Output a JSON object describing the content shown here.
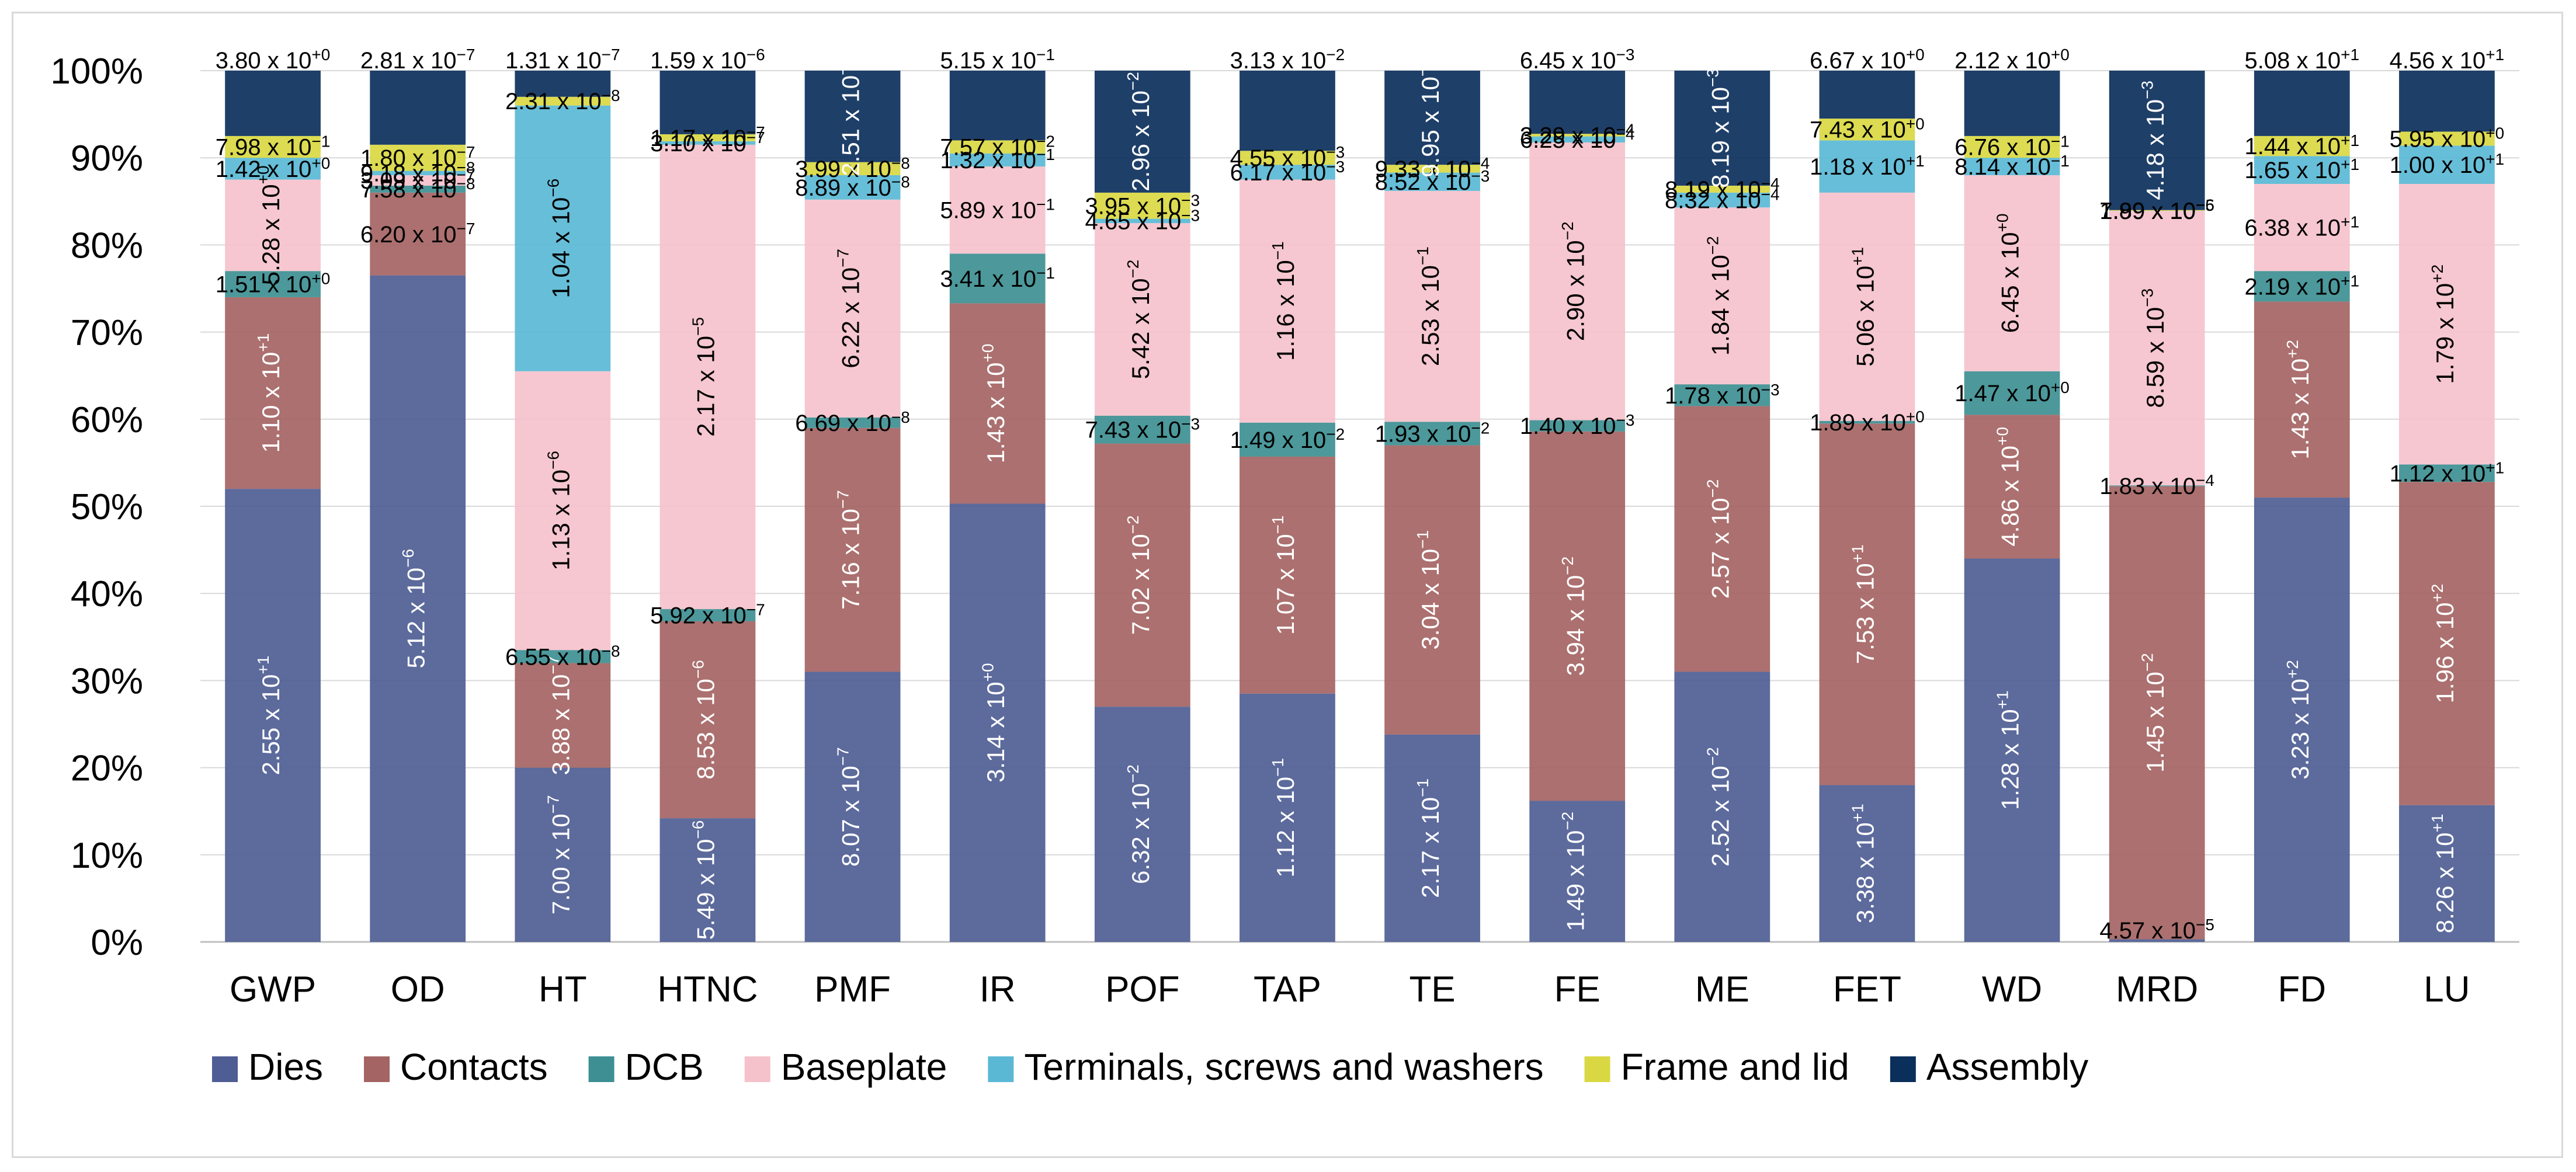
{
  "chart_data": {
    "type": "bar",
    "stacked": "percent",
    "title": "",
    "xlabel": "",
    "ylabel": "",
    "ylim": [
      0,
      100
    ],
    "yticks": [
      "0%",
      "10%",
      "20%",
      "30%",
      "40%",
      "50%",
      "60%",
      "70%",
      "80%",
      "90%",
      "100%"
    ],
    "grid": true,
    "legend_position": "bottom",
    "categories": [
      "GWP",
      "OD",
      "HT",
      "HTNC",
      "PMF",
      "IR",
      "POF",
      "TAP",
      "TE",
      "FE",
      "ME",
      "FET",
      "WD",
      "MRD",
      "FD",
      "LU"
    ],
    "series": [
      {
        "name": "Dies",
        "color": "#4e5d94",
        "values": [
          52,
          76.5,
          20,
          14.2,
          31,
          50.3,
          27,
          28.5,
          23.8,
          16.3,
          31,
          18,
          44,
          0.3,
          51,
          15.7
        ],
        "labels": [
          "2.55 x 10+1",
          "5.12 x 10−6",
          "7.00 x 10−7",
          "5.49 x 10−6",
          "8.07 x 10−7",
          "3.14 x 10+0",
          "6.32 x 10−2",
          "1.12 x 10−1",
          "2.17 x 10−1",
          "1.49 x 10−2",
          "2.52 x 10−2",
          "3.38 x 10+1",
          "1.28 x 10+1",
          "4.57 x 10−5",
          "3.23 x 10+2",
          "8.26 x 10+1"
        ]
      },
      {
        "name": "Contacts",
        "color": "#a46463",
        "values": [
          22,
          9.5,
          12,
          22.6,
          28,
          23,
          30.2,
          27.2,
          33.2,
          42.7,
          30.5,
          41.5,
          16.5,
          52,
          22.5,
          37.1
        ],
        "labels": [
          "1.10 x 10+1",
          "6.20 x 10−7",
          "3.88 x 10−7",
          "8.53 x 10−6",
          "7.16 x 10−7",
          "1.43 x 10+0",
          "7.02 x 10−2",
          "1.07 x 10−1",
          "3.04 x 10−1",
          "3.94 x 10−2",
          "2.57 x 10−2",
          "7.53 x 10+1",
          "4.86 x 10+0",
          "1.45 x 10−2",
          "1.43 x 10+2",
          "1.96 x 10+2"
        ]
      },
      {
        "name": "DCB",
        "color": "#3d8f93",
        "values": [
          3,
          0.8,
          1.5,
          1.4,
          1.2,
          5.7,
          3.2,
          3.9,
          2.7,
          1.3,
          2.5,
          0.3,
          5,
          0.1,
          3.5,
          2
        ],
        "labels": [
          "1.51 x 10+0",
          "7.58 x 10−8",
          "6.55 x 10−8",
          "5.92 x 10−7",
          "6.69 x 10−8",
          "3.41 x 10−1",
          "7.43 x 10−3",
          "1.49 x 10−2",
          "1.93 x 10−2",
          "1.40 x 10−3",
          "1.78 x 10−3",
          "1.89 x 10+0",
          "1.47 x 10+0",
          "1.83 x 10−4",
          "2.19 x 10+1",
          "1.12 x 10+1"
        ]
      },
      {
        "name": "Baseplate",
        "color": "#f5c2cc",
        "values": [
          10.5,
          1.2,
          32,
          53.3,
          25,
          10,
          22.1,
          27.9,
          26.5,
          32.1,
          20.3,
          26.2,
          22.5,
          31.5,
          10,
          32.2
        ],
        "labels": [
          "5.28 x 10+0",
          "3.09 x 10−7",
          "1.13 x 10−6",
          "2.17 x 10−5",
          "6.22 x 10−7",
          "5.89 x 10−1",
          "5.42 x 10−2",
          "1.16 x 10−1",
          "2.53 x 10−1",
          "2.90 x 10−2",
          "1.84 x 10−2",
          "5.06 x 10+1",
          "6.45 x 10+0",
          "8.59 x 10−3",
          "6.38 x 10+1",
          "1.79 x 10+2"
        ]
      },
      {
        "name": "Terminals, screws and washers",
        "color": "#5ab8d5",
        "values": [
          2.5,
          0.5,
          30.5,
          0.4,
          2.8,
          1.5,
          0.5,
          1.7,
          2.1,
          0.7,
          1.7,
          6,
          2,
          0.01,
          3.2,
          4.4
        ],
        "labels": [
          "1.42 x 10+0",
          "9.18 x 10−8",
          "1.04 x 10−6",
          "3.10 x 10−7",
          "8.89 x 10−8",
          "1.32 x 10−1",
          "4.65 x 10−3",
          "6.17 x 10−3",
          "8.52 x 10−3",
          "6.25 x 10−4",
          "8.32 x 10−4",
          "1.18 x 10+1",
          "8.14 x 10−1",
          "1.99 x 10−5",
          "1.65 x 10+1",
          "1.00 x 10+1"
        ]
      },
      {
        "name": "Frame and lid",
        "color": "#d9d842",
        "values": [
          2.5,
          3,
          1,
          0.8,
          1.5,
          1.5,
          3,
          1.6,
          0.9,
          0.3,
          0.8,
          2.5,
          2.5,
          0.09,
          2.3,
          1.6
        ],
        "labels": [
          "7.98 x 10−1",
          "1.80 x 10−7",
          "2.31 x 10−8",
          "1.17 x 10−7",
          "3.99 x 10−8",
          "7.57 x 10−2",
          "3.95 x 10−3",
          "4.55 x 10−3",
          "9.33 x 10−4",
          "3.29 x 10−4",
          "8.19 x 10−4",
          "7.43 x 10+0",
          "6.76 x 10−1",
          "7.89 x 10−6",
          "1.44 x 10+1",
          "5.95 x 10+0"
        ]
      },
      {
        "name": "Assembly",
        "color": "#0b2f5b",
        "values": [
          7.5,
          8.5,
          3,
          7.3,
          10.5,
          8,
          14,
          9.2,
          10.8,
          7.3,
          13.2,
          5.5,
          7.5,
          16,
          7.5,
          7
        ],
        "labels": [
          "3.80 x 10+0",
          "2.81 x 10−7",
          "1.31 x 10−7",
          "1.59 x 10−6",
          "2.51 x 10−7",
          "5.15 x 10−1",
          "2.96 x 10−2",
          "3.13 x 10−2",
          "9.95 x 10−2",
          "6.45 x 10−3",
          "8.19 x 10−3",
          "6.67 x 10+0",
          "2.12 x 10+0",
          "4.18 x 10−3",
          "5.08 x 10+1",
          "4.56 x 10+1"
        ]
      }
    ]
  }
}
